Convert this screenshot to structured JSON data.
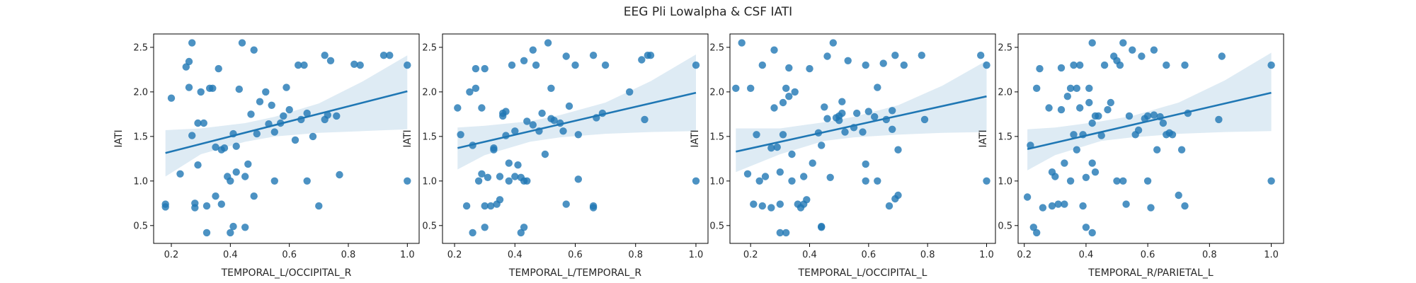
{
  "figure": {
    "title": "EEG Pli Lowalpha & CSF IATI",
    "colors": {
      "scatter": "#1f77b4",
      "line": "#1f77b4",
      "band": "#1f77b4"
    }
  },
  "chart_data": [
    {
      "type": "scatter",
      "xlabel": "TEMPORAL_L/OCCIPITAL_R",
      "ylabel": "IATI",
      "xlim": [
        0.14,
        1.04
      ],
      "ylim": [
        0.3,
        2.65
      ],
      "xticks": [
        0.2,
        0.4,
        0.6,
        0.8,
        1.0
      ],
      "xtick_labels": [
        "0.2",
        "0.4",
        "0.6",
        "0.8",
        "1.0"
      ],
      "yticks": [
        0.5,
        1.0,
        1.5,
        2.0,
        2.5
      ],
      "ytick_labels": [
        "0.5",
        "1.0",
        "1.5",
        "2.0",
        "2.5"
      ],
      "points": [
        [
          0.18,
          0.74
        ],
        [
          0.18,
          0.71
        ],
        [
          0.2,
          1.93
        ],
        [
          0.23,
          1.08
        ],
        [
          0.25,
          2.28
        ],
        [
          0.26,
          2.34
        ],
        [
          0.27,
          2.55
        ],
        [
          0.26,
          2.05
        ],
        [
          0.27,
          1.51
        ],
        [
          0.28,
          0.75
        ],
        [
          0.28,
          0.7
        ],
        [
          0.29,
          1.18
        ],
        [
          0.29,
          1.65
        ],
        [
          0.3,
          2.0
        ],
        [
          0.31,
          1.65
        ],
        [
          0.32,
          0.72
        ],
        [
          0.32,
          0.42
        ],
        [
          0.33,
          2.04
        ],
        [
          0.34,
          2.04
        ],
        [
          0.35,
          1.38
        ],
        [
          0.35,
          0.83
        ],
        [
          0.36,
          2.26
        ],
        [
          0.37,
          1.35
        ],
        [
          0.37,
          0.74
        ],
        [
          0.38,
          1.37
        ],
        [
          0.39,
          1.05
        ],
        [
          0.4,
          1.0
        ],
        [
          0.4,
          0.42
        ],
        [
          0.41,
          0.49
        ],
        [
          0.41,
          1.53
        ],
        [
          0.42,
          1.39
        ],
        [
          0.42,
          1.1
        ],
        [
          0.43,
          2.03
        ],
        [
          0.44,
          2.55
        ],
        [
          0.45,
          0.48
        ],
        [
          0.45,
          1.05
        ],
        [
          0.46,
          1.19
        ],
        [
          0.47,
          1.75
        ],
        [
          0.48,
          0.83
        ],
        [
          0.48,
          2.47
        ],
        [
          0.49,
          1.53
        ],
        [
          0.5,
          1.89
        ],
        [
          0.52,
          2.0
        ],
        [
          0.53,
          1.64
        ],
        [
          0.54,
          1.85
        ],
        [
          0.55,
          1.55
        ],
        [
          0.55,
          1.0
        ],
        [
          0.57,
          1.65
        ],
        [
          0.58,
          1.73
        ],
        [
          0.59,
          2.05
        ],
        [
          0.6,
          1.8
        ],
        [
          0.62,
          1.46
        ],
        [
          0.63,
          2.3
        ],
        [
          0.64,
          1.69
        ],
        [
          0.65,
          2.3
        ],
        [
          0.66,
          1.76
        ],
        [
          0.66,
          1.0
        ],
        [
          0.68,
          1.5
        ],
        [
          0.7,
          0.72
        ],
        [
          0.72,
          1.69
        ],
        [
          0.72,
          2.41
        ],
        [
          0.73,
          1.74
        ],
        [
          0.74,
          2.35
        ],
        [
          0.76,
          1.73
        ],
        [
          0.77,
          1.07
        ],
        [
          0.82,
          2.31
        ],
        [
          0.84,
          2.3
        ],
        [
          0.92,
          2.41
        ],
        [
          0.94,
          2.41
        ],
        [
          1.0,
          2.3
        ],
        [
          1.0,
          1.0
        ]
      ],
      "regression": {
        "intercept": 1.162,
        "slope": 0.845
      },
      "ci_band": {
        "x": [
          0.18,
          0.3,
          0.45,
          0.55,
          0.7,
          0.85,
          1.0
        ],
        "lower": [
          1.05,
          1.3,
          1.44,
          1.5,
          1.54,
          1.56,
          1.58
        ],
        "upper": [
          1.57,
          1.59,
          1.65,
          1.72,
          1.87,
          2.12,
          2.41
        ]
      }
    },
    {
      "type": "scatter",
      "xlabel": "TEMPORAL_L/TEMPORAL_R",
      "ylabel": "IATI",
      "xlim": [
        0.16,
        1.04
      ],
      "ylim": [
        0.3,
        2.65
      ],
      "xticks": [
        0.2,
        0.4,
        0.6,
        0.8,
        1.0
      ],
      "xtick_labels": [
        "0.2",
        "0.4",
        "0.6",
        "0.8",
        "1.0"
      ],
      "yticks": [
        0.5,
        1.0,
        1.5,
        2.0,
        2.5
      ],
      "ytick_labels": [
        "0.5",
        "1.0",
        "1.5",
        "2.0",
        "2.5"
      ],
      "points": [
        [
          0.21,
          1.82
        ],
        [
          0.22,
          1.52
        ],
        [
          0.24,
          0.72
        ],
        [
          0.25,
          2.0
        ],
        [
          0.26,
          1.4
        ],
        [
          0.26,
          0.42
        ],
        [
          0.27,
          2.04
        ],
        [
          0.27,
          2.26
        ],
        [
          0.28,
          1.0
        ],
        [
          0.29,
          1.08
        ],
        [
          0.29,
          1.82
        ],
        [
          0.3,
          2.26
        ],
        [
          0.3,
          0.72
        ],
        [
          0.3,
          0.48
        ],
        [
          0.31,
          1.04
        ],
        [
          0.32,
          0.72
        ],
        [
          0.33,
          1.37
        ],
        [
          0.33,
          1.35
        ],
        [
          0.34,
          0.74
        ],
        [
          0.35,
          0.79
        ],
        [
          0.35,
          1.05
        ],
        [
          0.36,
          1.73
        ],
        [
          0.36,
          1.76
        ],
        [
          0.37,
          1.51
        ],
        [
          0.37,
          1.78
        ],
        [
          0.38,
          1.0
        ],
        [
          0.38,
          1.2
        ],
        [
          0.39,
          2.3
        ],
        [
          0.4,
          1.05
        ],
        [
          0.4,
          1.56
        ],
        [
          0.41,
          1.18
        ],
        [
          0.42,
          1.04
        ],
        [
          0.42,
          0.42
        ],
        [
          0.43,
          1.0
        ],
        [
          0.43,
          0.48
        ],
        [
          0.43,
          2.35
        ],
        [
          0.44,
          1.0
        ],
        [
          0.44,
          1.67
        ],
        [
          0.46,
          2.47
        ],
        [
          0.46,
          1.63
        ],
        [
          0.47,
          2.3
        ],
        [
          0.48,
          1.56
        ],
        [
          0.49,
          1.76
        ],
        [
          0.5,
          1.3
        ],
        [
          0.51,
          2.55
        ],
        [
          0.52,
          2.04
        ],
        [
          0.52,
          1.7
        ],
        [
          0.53,
          1.68
        ],
        [
          0.55,
          1.65
        ],
        [
          0.56,
          1.56
        ],
        [
          0.57,
          2.4
        ],
        [
          0.57,
          0.74
        ],
        [
          0.58,
          1.84
        ],
        [
          0.6,
          2.3
        ],
        [
          0.61,
          1.52
        ],
        [
          0.61,
          1.02
        ],
        [
          0.66,
          0.72
        ],
        [
          0.66,
          2.41
        ],
        [
          0.66,
          0.7
        ],
        [
          0.67,
          1.71
        ],
        [
          0.69,
          1.76
        ],
        [
          0.7,
          2.3
        ],
        [
          0.78,
          2.0
        ],
        [
          0.82,
          2.36
        ],
        [
          0.83,
          1.69
        ],
        [
          0.84,
          2.41
        ],
        [
          0.85,
          2.41
        ],
        [
          1.0,
          2.3
        ],
        [
          1.0,
          1.0
        ]
      ],
      "regression": {
        "intercept": 1.205,
        "slope": 0.785
      },
      "ci_band": {
        "x": [
          0.21,
          0.3,
          0.45,
          0.55,
          0.7,
          0.85,
          1.0
        ],
        "lower": [
          1.13,
          1.29,
          1.44,
          1.49,
          1.53,
          1.55,
          1.56
        ],
        "upper": [
          1.6,
          1.62,
          1.67,
          1.74,
          1.88,
          2.12,
          2.42
        ]
      }
    },
    {
      "type": "scatter",
      "xlabel": "TEMPORAL_L/OCCIPITAL_L",
      "ylabel": "IATI",
      "xlim": [
        0.13,
        1.03
      ],
      "ylim": [
        0.3,
        2.65
      ],
      "xticks": [
        0.2,
        0.4,
        0.6,
        0.8,
        1.0
      ],
      "xtick_labels": [
        "0.2",
        "0.4",
        "0.6",
        "0.8",
        "1.0"
      ],
      "yticks": [
        0.5,
        1.0,
        1.5,
        2.0,
        2.5
      ],
      "ytick_labels": [
        "0.5",
        "1.0",
        "1.5",
        "2.0",
        "2.5"
      ],
      "points": [
        [
          0.15,
          2.04
        ],
        [
          0.17,
          2.55
        ],
        [
          0.19,
          1.08
        ],
        [
          0.2,
          2.04
        ],
        [
          0.21,
          0.74
        ],
        [
          0.22,
          1.52
        ],
        [
          0.23,
          1.0
        ],
        [
          0.24,
          2.3
        ],
        [
          0.24,
          0.72
        ],
        [
          0.25,
          1.05
        ],
        [
          0.27,
          0.7
        ],
        [
          0.27,
          1.37
        ],
        [
          0.28,
          1.82
        ],
        [
          0.28,
          2.47
        ],
        [
          0.29,
          1.38
        ],
        [
          0.3,
          0.74
        ],
        [
          0.3,
          1.1
        ],
        [
          0.3,
          0.42
        ],
        [
          0.31,
          1.52
        ],
        [
          0.31,
          1.88
        ],
        [
          0.32,
          0.42
        ],
        [
          0.32,
          2.04
        ],
        [
          0.33,
          2.27
        ],
        [
          0.33,
          1.95
        ],
        [
          0.34,
          1.0
        ],
        [
          0.34,
          1.3
        ],
        [
          0.35,
          2.0
        ],
        [
          0.36,
          0.74
        ],
        [
          0.37,
          0.7
        ],
        [
          0.38,
          0.74
        ],
        [
          0.38,
          1.05
        ],
        [
          0.39,
          0.79
        ],
        [
          0.4,
          2.26
        ],
        [
          0.41,
          1.2
        ],
        [
          0.43,
          1.54
        ],
        [
          0.44,
          0.49
        ],
        [
          0.44,
          0.48
        ],
        [
          0.44,
          1.4
        ],
        [
          0.45,
          1.83
        ],
        [
          0.46,
          1.7
        ],
        [
          0.46,
          2.4
        ],
        [
          0.47,
          1.04
        ],
        [
          0.48,
          2.55
        ],
        [
          0.49,
          1.71
        ],
        [
          0.5,
          1.68
        ],
        [
          0.5,
          1.73
        ],
        [
          0.51,
          1.89
        ],
        [
          0.51,
          1.76
        ],
        [
          0.52,
          1.55
        ],
        [
          0.53,
          2.35
        ],
        [
          0.55,
          1.6
        ],
        [
          0.56,
          1.76
        ],
        [
          0.58,
          1.55
        ],
        [
          0.59,
          2.3
        ],
        [
          0.59,
          1.0
        ],
        [
          0.59,
          1.19
        ],
        [
          0.6,
          1.78
        ],
        [
          0.62,
          1.72
        ],
        [
          0.63,
          2.05
        ],
        [
          0.63,
          1.0
        ],
        [
          0.65,
          2.32
        ],
        [
          0.66,
          1.69
        ],
        [
          0.67,
          0.72
        ],
        [
          0.68,
          1.79
        ],
        [
          0.68,
          1.58
        ],
        [
          0.69,
          2.41
        ],
        [
          0.69,
          0.8
        ],
        [
          0.7,
          1.35
        ],
        [
          0.7,
          0.84
        ],
        [
          0.72,
          2.3
        ],
        [
          0.78,
          2.41
        ],
        [
          0.79,
          1.69
        ],
        [
          0.98,
          2.41
        ],
        [
          1.0,
          2.3
        ],
        [
          1.0,
          1.0
        ]
      ],
      "regression": {
        "intercept": 1.22,
        "slope": 0.73
      },
      "ci_band": {
        "x": [
          0.15,
          0.3,
          0.45,
          0.55,
          0.7,
          0.85,
          1.0
        ],
        "lower": [
          1.1,
          1.3,
          1.45,
          1.49,
          1.52,
          1.54,
          1.55
        ],
        "upper": [
          1.59,
          1.59,
          1.66,
          1.72,
          1.85,
          2.07,
          2.35
        ]
      }
    },
    {
      "type": "scatter",
      "xlabel": "TEMPORAL_R/PARIETAL_L",
      "ylabel": "IATI",
      "xlim": [
        0.18,
        1.04
      ],
      "ylim": [
        0.3,
        2.65
      ],
      "xticks": [
        0.2,
        0.4,
        0.6,
        0.8,
        1.0
      ],
      "xtick_labels": [
        "0.2",
        "0.4",
        "0.6",
        "0.8",
        "1.0"
      ],
      "yticks": [
        0.5,
        1.0,
        1.5,
        2.0,
        2.5
      ],
      "ytick_labels": [
        "0.5",
        "1.0",
        "1.5",
        "2.0",
        "2.5"
      ],
      "points": [
        [
          0.21,
          0.82
        ],
        [
          0.22,
          1.4
        ],
        [
          0.23,
          0.48
        ],
        [
          0.24,
          2.04
        ],
        [
          0.24,
          0.42
        ],
        [
          0.25,
          2.26
        ],
        [
          0.26,
          0.7
        ],
        [
          0.28,
          1.82
        ],
        [
          0.29,
          1.1
        ],
        [
          0.29,
          0.72
        ],
        [
          0.3,
          1.05
        ],
        [
          0.31,
          0.74
        ],
        [
          0.32,
          1.8
        ],
        [
          0.32,
          2.27
        ],
        [
          0.33,
          1.2
        ],
        [
          0.33,
          0.74
        ],
        [
          0.34,
          1.95
        ],
        [
          0.35,
          1.0
        ],
        [
          0.35,
          2.04
        ],
        [
          0.36,
          1.52
        ],
        [
          0.36,
          2.3
        ],
        [
          0.37,
          2.04
        ],
        [
          0.37,
          1.35
        ],
        [
          0.38,
          1.82
        ],
        [
          0.38,
          2.3
        ],
        [
          0.39,
          0.72
        ],
        [
          0.39,
          1.52
        ],
        [
          0.4,
          1.04
        ],
        [
          0.4,
          0.48
        ],
        [
          0.41,
          1.88
        ],
        [
          0.41,
          2.04
        ],
        [
          0.42,
          1.65
        ],
        [
          0.42,
          1.2
        ],
        [
          0.42,
          2.55
        ],
        [
          0.42,
          0.42
        ],
        [
          0.43,
          1.1
        ],
        [
          0.43,
          1.73
        ],
        [
          0.44,
          1.73
        ],
        [
          0.45,
          1.51
        ],
        [
          0.46,
          2.3
        ],
        [
          0.47,
          1.8
        ],
        [
          0.48,
          1.88
        ],
        [
          0.49,
          2.4
        ],
        [
          0.5,
          2.35
        ],
        [
          0.5,
          1.0
        ],
        [
          0.51,
          2.3
        ],
        [
          0.52,
          1.0
        ],
        [
          0.52,
          2.55
        ],
        [
          0.53,
          0.74
        ],
        [
          0.54,
          1.73
        ],
        [
          0.55,
          2.47
        ],
        [
          0.56,
          1.52
        ],
        [
          0.57,
          1.57
        ],
        [
          0.58,
          2.4
        ],
        [
          0.59,
          1.7
        ],
        [
          0.6,
          1.73
        ],
        [
          0.6,
          1.0
        ],
        [
          0.61,
          0.7
        ],
        [
          0.62,
          2.47
        ],
        [
          0.62,
          1.74
        ],
        [
          0.63,
          1.35
        ],
        [
          0.64,
          1.72
        ],
        [
          0.65,
          1.65
        ],
        [
          0.66,
          2.3
        ],
        [
          0.66,
          1.52
        ],
        [
          0.67,
          1.54
        ],
        [
          0.68,
          1.52
        ],
        [
          0.7,
          0.84
        ],
        [
          0.71,
          1.35
        ],
        [
          0.72,
          2.3
        ],
        [
          0.72,
          0.72
        ],
        [
          0.73,
          1.76
        ],
        [
          0.83,
          1.69
        ],
        [
          0.84,
          2.4
        ],
        [
          1.0,
          2.3
        ],
        [
          1.0,
          1.0
        ]
      ],
      "regression": {
        "intercept": 1.19,
        "slope": 0.8
      },
      "ci_band": {
        "x": [
          0.21,
          0.3,
          0.45,
          0.55,
          0.7,
          0.85,
          1.0
        ],
        "lower": [
          1.12,
          1.29,
          1.45,
          1.49,
          1.53,
          1.55,
          1.56
        ],
        "upper": [
          1.58,
          1.6,
          1.67,
          1.73,
          1.88,
          2.13,
          2.44
        ]
      }
    }
  ]
}
